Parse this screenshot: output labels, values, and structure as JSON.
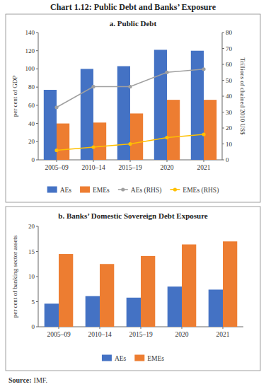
{
  "title": "Chart 1.12: Public Debt and Banks’ Exposure",
  "annotations": [
    "Source:",
    "IMF."
  ],
  "chart_data": [
    {
      "type": "bar",
      "title": "a. Public Debt",
      "categories": [
        "2005–09",
        "2010–14",
        "2015–19",
        "2020",
        "2021"
      ],
      "series": [
        {
          "name": "AEs",
          "type": "bar",
          "color": "#4472C4",
          "values": [
            77,
            100,
            103,
            121,
            120
          ]
        },
        {
          "name": "EMEs",
          "type": "bar",
          "color": "#ED7D31",
          "values": [
            40,
            41,
            51,
            66,
            66
          ]
        },
        {
          "name": "AEs (RHS)",
          "type": "line",
          "axis": "y2",
          "marker": "circle",
          "color": "#A0A0A0",
          "values": [
            33,
            46,
            46,
            55,
            57
          ]
        },
        {
          "name": "EMEs (RHS)",
          "type": "line",
          "axis": "y2",
          "marker": "circle",
          "color": "#FFC000",
          "values": [
            6,
            8,
            10,
            14,
            16
          ]
        }
      ],
      "ylabel": "per cent of GDP",
      "y2label": "Trillions of chained 2010 US$",
      "ylim": [
        0,
        140
      ],
      "yticks": [
        0,
        20,
        40,
        60,
        80,
        100,
        120,
        140
      ],
      "y2lim": [
        0,
        80
      ],
      "y2ticks": [
        0,
        10,
        20,
        30,
        40,
        50,
        60,
        70,
        80
      ],
      "grid": false,
      "legend": "bottom"
    },
    {
      "type": "bar",
      "title": "b. Banks’ Domestic Sovereign Debt Exposure",
      "categories": [
        "2005–09",
        "2010–14",
        "2015–19",
        "2020",
        "2021"
      ],
      "series": [
        {
          "name": "AEs",
          "type": "bar",
          "color": "#4472C4",
          "values": [
            4.6,
            6.1,
            5.8,
            8.0,
            7.4
          ]
        },
        {
          "name": "EMEs",
          "type": "bar",
          "color": "#ED7D31",
          "values": [
            14.5,
            12.5,
            14.1,
            16.4,
            17.0
          ]
        }
      ],
      "ylabel": "per cent of banking sector assets",
      "ylim": [
        0,
        20
      ],
      "yticks": [
        0,
        5,
        10,
        15,
        20
      ],
      "grid": false,
      "legend": "bottom"
    }
  ]
}
